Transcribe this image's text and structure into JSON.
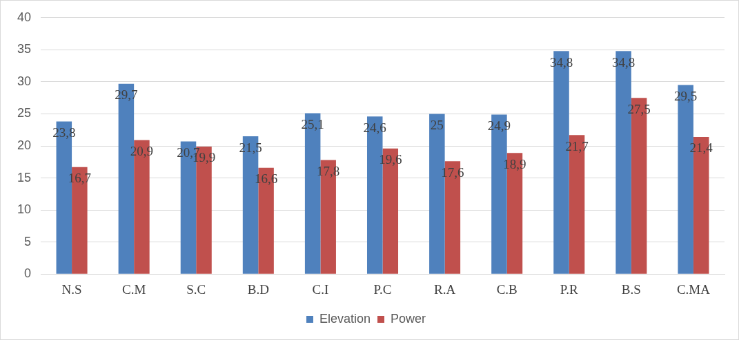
{
  "chart_data": {
    "type": "bar",
    "categories": [
      "N.S",
      "C.M",
      "S.C",
      "B.D",
      "C.I",
      "P.C",
      "R.A",
      "C.B",
      "P.R",
      "B.S",
      "C.MA"
    ],
    "series": [
      {
        "name": "Elevation",
        "color": "#4f81bd",
        "values": [
          23.8,
          29.7,
          20.7,
          21.5,
          25.1,
          24.6,
          25,
          24.9,
          34.8,
          34.8,
          29.5
        ],
        "value_labels": [
          "23,8",
          "29,7",
          "20,7",
          "21,5",
          "25,1",
          "24,6",
          "25",
          "24,9",
          "34,8",
          "34,8",
          "29,5"
        ]
      },
      {
        "name": "Power",
        "color": "#c0504d",
        "values": [
          16.7,
          20.9,
          19.9,
          16.6,
          17.8,
          19.6,
          17.6,
          18.9,
          21.7,
          27.5,
          21.4
        ],
        "value_labels": [
          "16,7",
          "20,9",
          "19,9",
          "16,6",
          "17,8",
          "19,6",
          "17,6",
          "18,9",
          "21,7",
          "27,5",
          "21,4"
        ]
      }
    ],
    "ylim": [
      0,
      40
    ],
    "yticks": [
      0,
      5,
      10,
      15,
      20,
      25,
      30,
      35,
      40
    ],
    "grid": "y",
    "legend": "bottom"
  }
}
